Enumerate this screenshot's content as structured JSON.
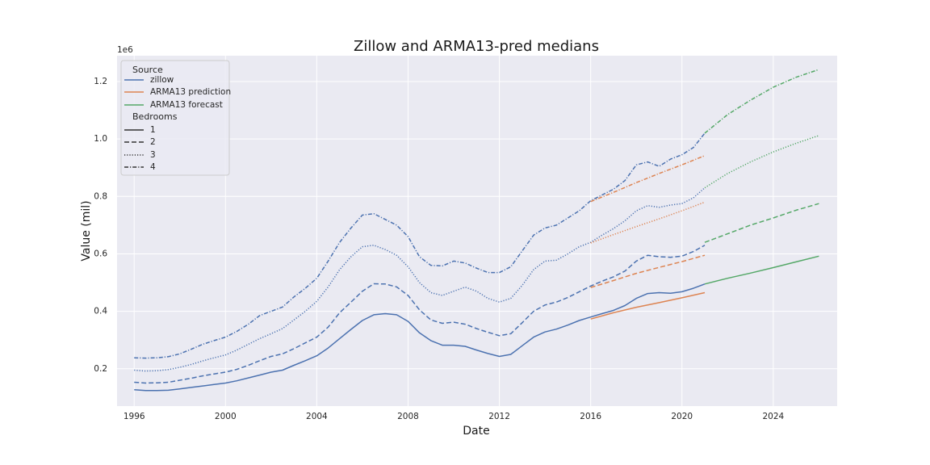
{
  "chart_data": {
    "type": "line",
    "title": "Zillow and ARMA13-pred medians",
    "xlabel": "Date",
    "ylabel": "Value (mil)",
    "y_scale_label": "1e6",
    "xlim": [
      1995.25,
      2026.8
    ],
    "ylim": [
      70000,
      1290000
    ],
    "x_ticks": [
      1996,
      2000,
      2004,
      2008,
      2012,
      2016,
      2020,
      2024
    ],
    "x_tick_labels": [
      "1996",
      "2000",
      "2004",
      "2008",
      "2012",
      "2016",
      "2020",
      "2024"
    ],
    "y_ticks": [
      200000,
      400000,
      600000,
      800000,
      1000000,
      1200000
    ],
    "y_tick_labels": [
      "0.2",
      "0.4",
      "0.6",
      "0.8",
      "1.0",
      "1.2"
    ],
    "grid": true,
    "legend": {
      "placement": "top-left",
      "source_title": "Source",
      "sources": [
        {
          "key": "zillow",
          "label": "zillow",
          "color": "#4c72b0"
        },
        {
          "key": "prediction",
          "label": "ARMA13 prediction",
          "color": "#dd8452"
        },
        {
          "key": "forecast",
          "label": "ARMA13 forecast",
          "color": "#55a868"
        }
      ],
      "bedrooms_title": "Bedrooms",
      "bedrooms": [
        {
          "label": "1",
          "dash": "solid"
        },
        {
          "label": "2",
          "dash": "dashed"
        },
        {
          "label": "3",
          "dash": "dotted"
        },
        {
          "label": "4",
          "dash": "dashdot"
        }
      ]
    },
    "series": [
      {
        "name": "zillow 1 bedroom",
        "source": "zillow",
        "bedrooms": "1",
        "x": [
          1996,
          1996.5,
          1997,
          1997.5,
          1998,
          1998.5,
          1999,
          1999.5,
          2000,
          2000.5,
          2001,
          2001.5,
          2002,
          2002.5,
          2003,
          2003.5,
          2004,
          2004.5,
          2005,
          2005.5,
          2006,
          2006.5,
          2007,
          2007.5,
          2008,
          2008.5,
          2009,
          2009.5,
          2010,
          2010.5,
          2011,
          2011.5,
          2012,
          2012.5,
          2013,
          2013.5,
          2014,
          2014.5,
          2015,
          2015.5,
          2016,
          2016.5,
          2017,
          2017.5,
          2018,
          2018.5,
          2019,
          2019.5,
          2020,
          2020.5,
          2021
        ],
        "values": [
          127000,
          124000,
          124000,
          125000,
          130000,
          135000,
          140000,
          145000,
          150000,
          158000,
          168000,
          178000,
          188000,
          195000,
          212000,
          228000,
          245000,
          272000,
          305000,
          337000,
          368000,
          388000,
          392000,
          388000,
          365000,
          325000,
          298000,
          282000,
          282000,
          278000,
          265000,
          253000,
          243000,
          250000,
          280000,
          310000,
          328000,
          338000,
          352000,
          368000,
          380000,
          392000,
          403000,
          420000,
          445000,
          462000,
          465000,
          463000,
          468000,
          480000,
          495000
        ]
      },
      {
        "name": "zillow 2 bedrooms",
        "source": "zillow",
        "bedrooms": "2",
        "x": [
          1996,
          1996.5,
          1997,
          1997.5,
          1998,
          1998.5,
          1999,
          1999.5,
          2000,
          2000.5,
          2001,
          2001.5,
          2002,
          2002.5,
          2003,
          2003.5,
          2004,
          2004.5,
          2005,
          2005.5,
          2006,
          2006.5,
          2007,
          2007.5,
          2008,
          2008.5,
          2009,
          2009.5,
          2010,
          2010.5,
          2011,
          2011.5,
          2012,
          2012.5,
          2013,
          2013.5,
          2014,
          2014.5,
          2015,
          2015.5,
          2016,
          2016.5,
          2017,
          2017.5,
          2018,
          2018.5,
          2019,
          2019.5,
          2020,
          2020.5,
          2021
        ],
        "values": [
          153000,
          150000,
          151000,
          153000,
          160000,
          167000,
          175000,
          182000,
          188000,
          198000,
          212000,
          228000,
          243000,
          252000,
          270000,
          290000,
          310000,
          345000,
          395000,
          432000,
          470000,
          496000,
          495000,
          485000,
          455000,
          405000,
          370000,
          358000,
          362000,
          355000,
          340000,
          327000,
          315000,
          322000,
          360000,
          400000,
          422000,
          432000,
          448000,
          468000,
          488000,
          505000,
          520000,
          540000,
          575000,
          595000,
          590000,
          588000,
          592000,
          608000,
          630000
        ]
      },
      {
        "name": "zillow 3 bedrooms",
        "source": "zillow",
        "bedrooms": "3",
        "x": [
          1996,
          1996.5,
          1997,
          1997.5,
          1998,
          1998.5,
          1999,
          1999.5,
          2000,
          2000.5,
          2001,
          2001.5,
          2002,
          2002.5,
          2003,
          2003.5,
          2004,
          2004.5,
          2005,
          2005.5,
          2006,
          2006.5,
          2007,
          2007.5,
          2008,
          2008.5,
          2009,
          2009.5,
          2010,
          2010.5,
          2011,
          2011.5,
          2012,
          2012.5,
          2013,
          2013.5,
          2014,
          2014.5,
          2015,
          2015.5,
          2016,
          2016.5,
          2017,
          2017.5,
          2018,
          2018.5,
          2019,
          2019.5,
          2020,
          2020.5,
          2021
        ],
        "values": [
          195000,
          192000,
          193000,
          197000,
          205000,
          215000,
          227000,
          238000,
          248000,
          265000,
          285000,
          305000,
          322000,
          340000,
          370000,
          400000,
          435000,
          485000,
          545000,
          590000,
          625000,
          630000,
          615000,
          595000,
          555000,
          500000,
          465000,
          455000,
          470000,
          484000,
          470000,
          445000,
          432000,
          445000,
          490000,
          545000,
          575000,
          578000,
          600000,
          625000,
          640000,
          665000,
          688000,
          715000,
          750000,
          768000,
          762000,
          770000,
          775000,
          795000,
          830000
        ]
      },
      {
        "name": "zillow 4 bedrooms",
        "source": "zillow",
        "bedrooms": "4",
        "x": [
          1996,
          1996.5,
          1997,
          1997.5,
          1998,
          1998.5,
          1999,
          1999.5,
          2000,
          2000.5,
          2001,
          2001.5,
          2002,
          2002.5,
          2003,
          2003.5,
          2004,
          2004.5,
          2005,
          2005.5,
          2006,
          2006.5,
          2007,
          2007.5,
          2008,
          2008.5,
          2009,
          2009.5,
          2010,
          2010.5,
          2011,
          2011.5,
          2012,
          2012.5,
          2013,
          2013.5,
          2014,
          2014.5,
          2015,
          2015.5,
          2016,
          2016.5,
          2017,
          2017.5,
          2018,
          2018.5,
          2019,
          2019.5,
          2020,
          2020.5,
          2021
        ],
        "values": [
          238000,
          237000,
          238000,
          242000,
          252000,
          268000,
          285000,
          298000,
          310000,
          330000,
          355000,
          385000,
          400000,
          415000,
          450000,
          480000,
          515000,
          575000,
          640000,
          690000,
          735000,
          740000,
          720000,
          700000,
          660000,
          590000,
          560000,
          558000,
          575000,
          568000,
          550000,
          535000,
          535000,
          555000,
          610000,
          665000,
          690000,
          700000,
          725000,
          750000,
          785000,
          805000,
          825000,
          855000,
          910000,
          920000,
          905000,
          930000,
          945000,
          970000,
          1020000
        ]
      },
      {
        "name": "prediction 1 bedroom",
        "source": "prediction",
        "bedrooms": "1",
        "x": [
          2016,
          2017,
          2018,
          2019,
          2020,
          2021
        ],
        "values": [
          373000,
          395000,
          414000,
          430000,
          447000,
          465000
        ]
      },
      {
        "name": "prediction 2 bedrooms",
        "source": "prediction",
        "bedrooms": "2",
        "x": [
          2016,
          2017,
          2018,
          2019,
          2020,
          2021
        ],
        "values": [
          483000,
          507000,
          532000,
          553000,
          573000,
          595000
        ]
      },
      {
        "name": "prediction 3 bedrooms",
        "source": "prediction",
        "bedrooms": "3",
        "x": [
          2016,
          2017,
          2018,
          2019,
          2020,
          2021
        ],
        "values": [
          638000,
          667000,
          695000,
          722000,
          750000,
          780000
        ]
      },
      {
        "name": "prediction 4 bedrooms",
        "source": "prediction",
        "bedrooms": "4",
        "x": [
          2016,
          2017,
          2018,
          2019,
          2020,
          2021
        ],
        "values": [
          782000,
          814000,
          848000,
          880000,
          910000,
          942000
        ]
      },
      {
        "name": "forecast 1 bedroom",
        "source": "forecast",
        "bedrooms": "1",
        "x": [
          2021,
          2022,
          2023,
          2024,
          2025,
          2026
        ],
        "values": [
          495000,
          515000,
          533000,
          552000,
          572000,
          592000
        ]
      },
      {
        "name": "forecast 2 bedrooms",
        "source": "forecast",
        "bedrooms": "2",
        "x": [
          2021,
          2022,
          2023,
          2024,
          2025,
          2026
        ],
        "values": [
          640000,
          670000,
          700000,
          725000,
          752000,
          775000
        ]
      },
      {
        "name": "forecast 3 bedrooms",
        "source": "forecast",
        "bedrooms": "3",
        "x": [
          2021,
          2022,
          2023,
          2024,
          2025,
          2026
        ],
        "values": [
          830000,
          880000,
          920000,
          955000,
          985000,
          1012000
        ]
      },
      {
        "name": "forecast 4 bedrooms",
        "source": "forecast",
        "bedrooms": "4",
        "x": [
          2021,
          2022,
          2023,
          2024,
          2025,
          2026
        ],
        "values": [
          1020000,
          1085000,
          1135000,
          1180000,
          1215000,
          1242000
        ]
      }
    ]
  }
}
